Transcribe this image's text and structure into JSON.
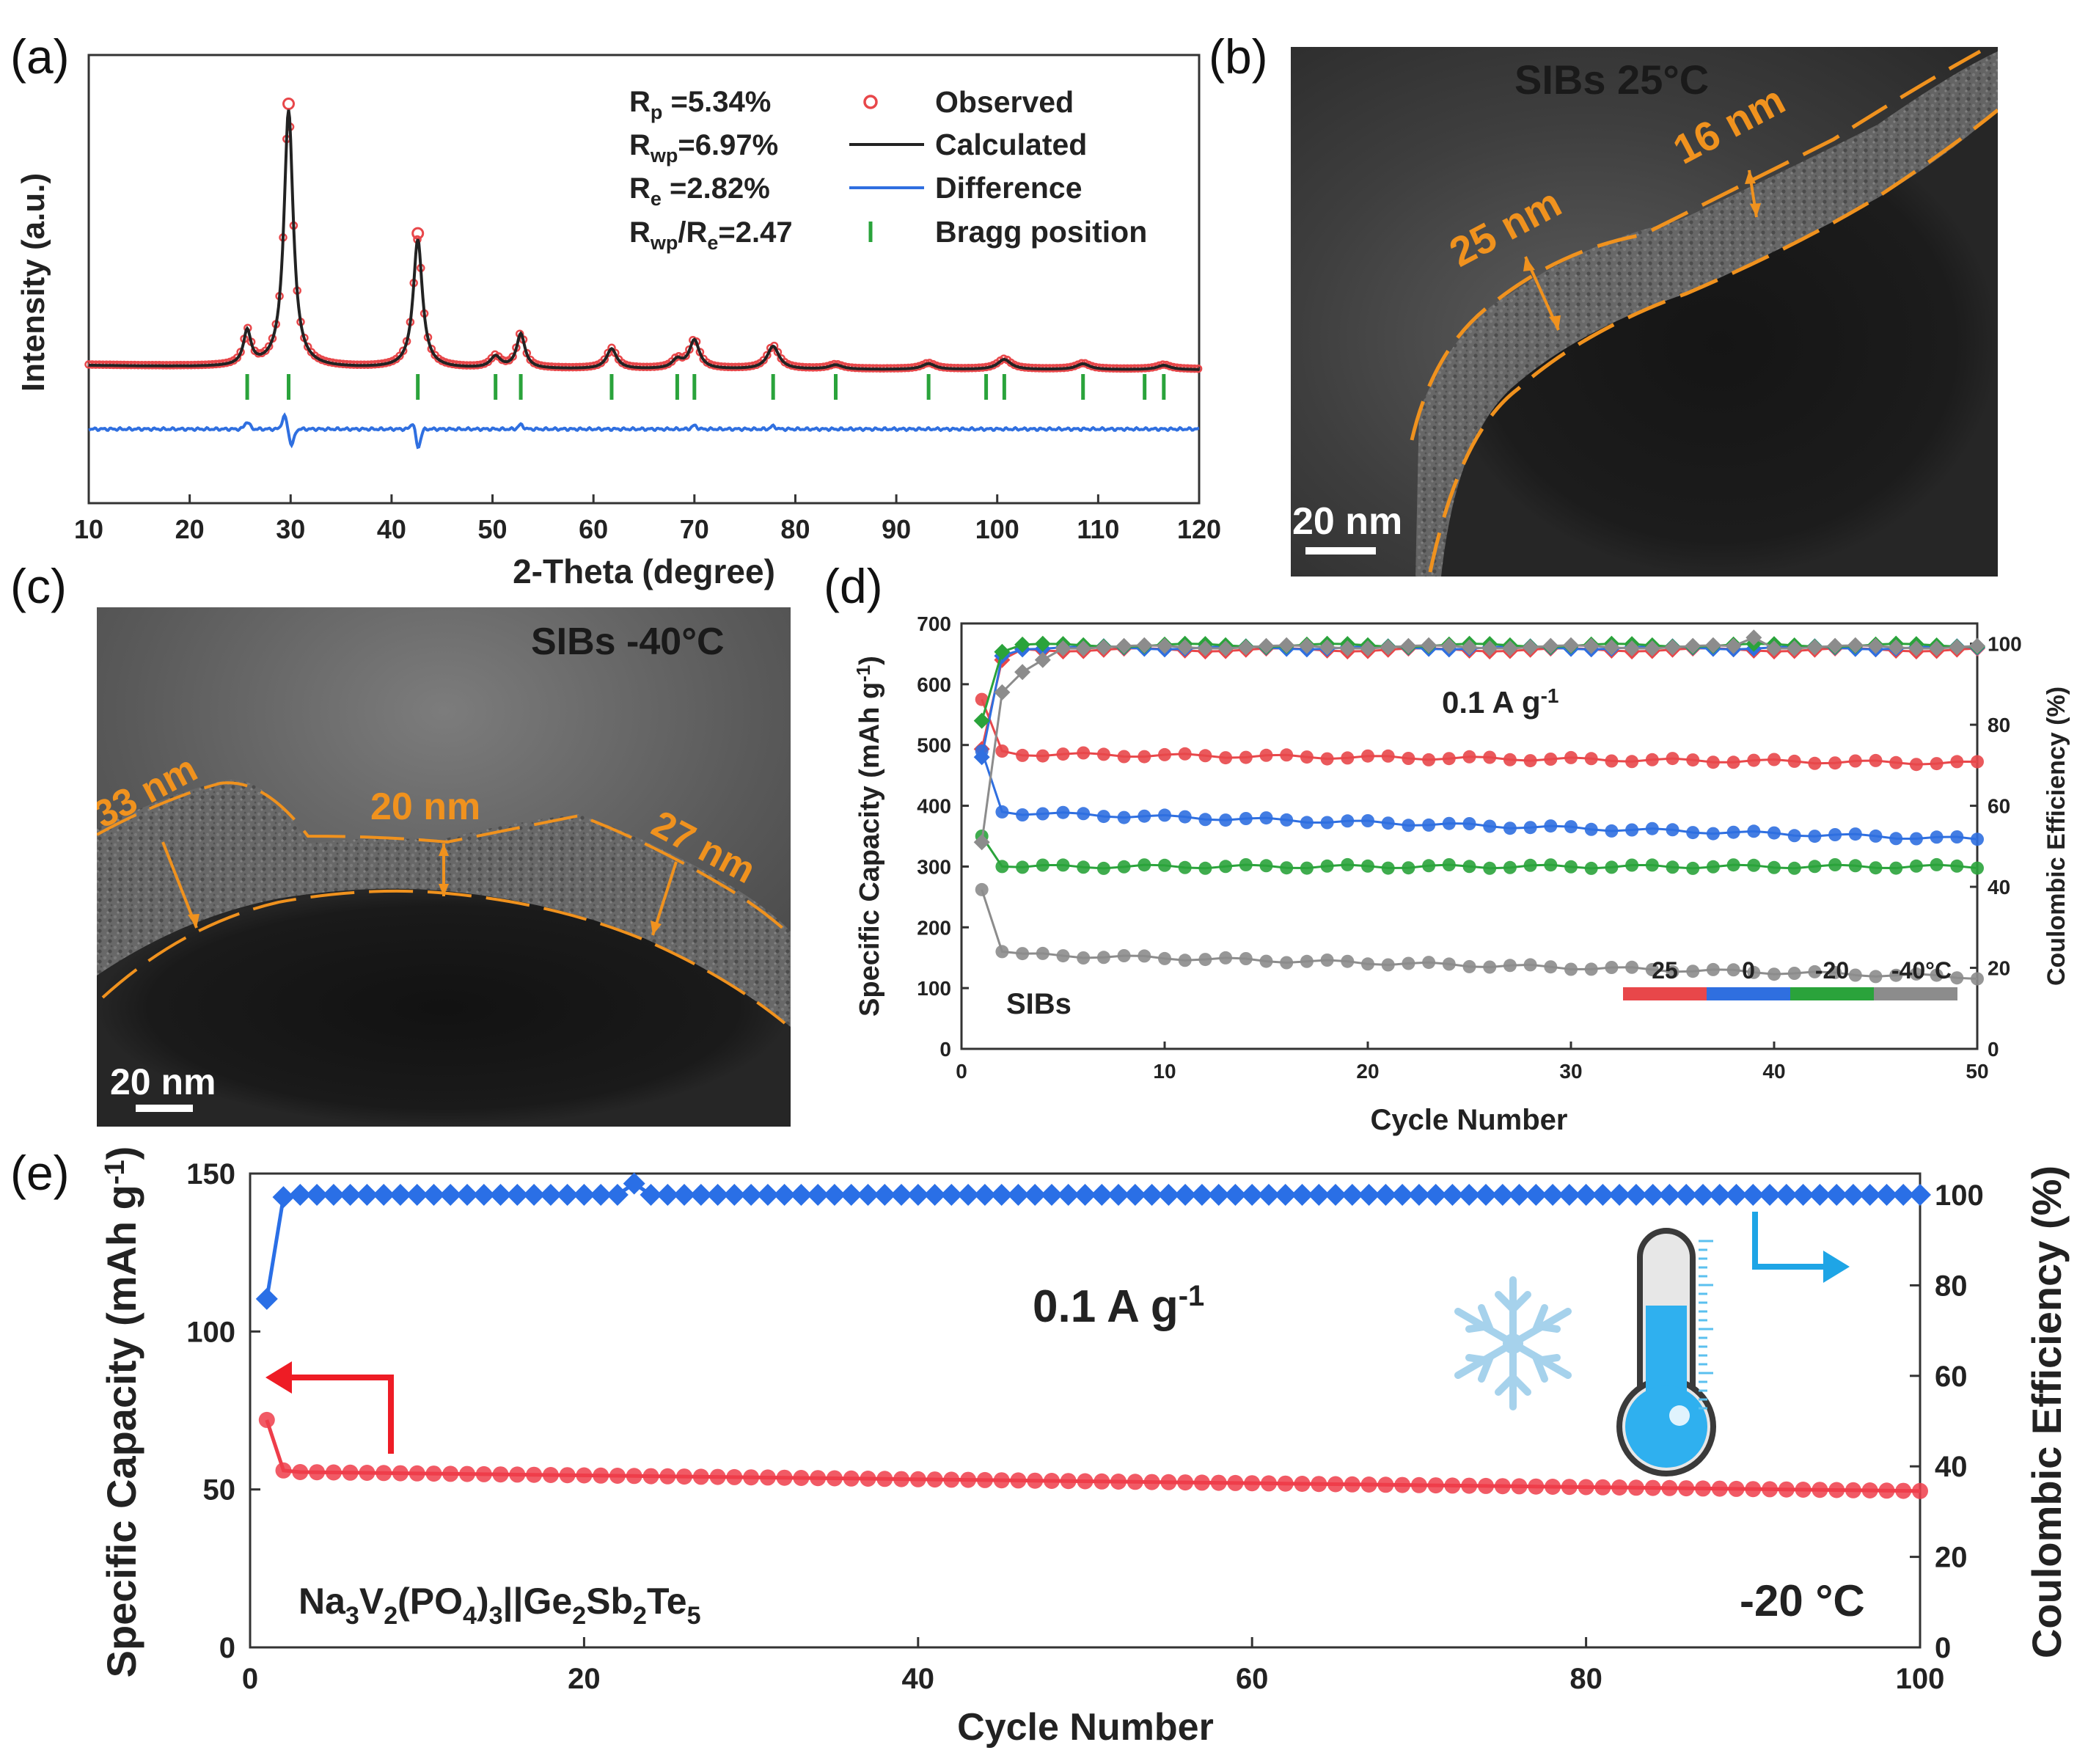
{
  "colors": {
    "observed": "#e8474a",
    "calculated": "#222222",
    "difference": "#2f6fe0",
    "bragg": "#2aa33b",
    "orange": "#f0921e",
    "t25": "#e8474a",
    "t0": "#2f6fe0",
    "tm20": "#2aa33b",
    "tm40": "#8c8c8c",
    "e_capacity": "#ee3d4a",
    "e_ce": "#2a6fe6",
    "cyan": "#1ea5e6"
  },
  "panels": {
    "a": {
      "letter": "(a)"
    },
    "b": {
      "letter": "(b)",
      "title": "SIBs   25°C",
      "measure_1": "25 nm",
      "measure_2": "16 nm",
      "scale_bar": "20 nm"
    },
    "c": {
      "letter": "(c)",
      "title": "SIBs   -40°C",
      "measure_1": "33 nm",
      "measure_2": "20 nm",
      "measure_3": "27 nm",
      "scale_bar": "20 nm"
    },
    "d": {
      "letter": "(d)"
    },
    "e": {
      "letter": "(e)"
    }
  },
  "chart_data": [
    {
      "id": "a",
      "type": "line",
      "title": "",
      "xlabel": "2-Theta (degree)",
      "ylabel": "Intensity (a.u.)",
      "xlim": [
        10,
        120
      ],
      "ylim": [
        0,
        1
      ],
      "xticks": [
        10,
        20,
        30,
        40,
        50,
        60,
        70,
        80,
        90,
        100,
        110,
        120
      ],
      "stats": [
        {
          "sym": "R",
          "sub": "p",
          "value": " =5.34%"
        },
        {
          "sym": "R",
          "sub": "wp",
          "value": "=6.97%"
        },
        {
          "sym": "R",
          "sub": "e",
          "value": " =2.82%"
        },
        {
          "sym": "R",
          "sub": "wp",
          "sym2": "/R",
          "sub2": "e",
          "value": "=2.47"
        }
      ],
      "legend": [
        "Observed",
        "Calculated",
        "Difference",
        "Bragg position"
      ],
      "baseline": 0.3,
      "peaks": [
        {
          "x": 25.7,
          "h": 0.12,
          "w": 0.45
        },
        {
          "x": 29.8,
          "h": 0.9,
          "w": 0.55
        },
        {
          "x": 42.6,
          "h": 0.45,
          "w": 0.55
        },
        {
          "x": 50.3,
          "h": 0.04,
          "w": 0.6
        },
        {
          "x": 52.8,
          "h": 0.12,
          "w": 0.5
        },
        {
          "x": 61.8,
          "h": 0.07,
          "w": 0.6
        },
        {
          "x": 68.3,
          "h": 0.03,
          "w": 0.6
        },
        {
          "x": 70.0,
          "h": 0.1,
          "w": 0.6
        },
        {
          "x": 77.8,
          "h": 0.08,
          "w": 0.7
        },
        {
          "x": 84.0,
          "h": 0.015,
          "w": 0.8
        },
        {
          "x": 93.2,
          "h": 0.02,
          "w": 0.8
        },
        {
          "x": 100.7,
          "h": 0.035,
          "w": 0.8
        },
        {
          "x": 108.5,
          "h": 0.02,
          "w": 0.8
        },
        {
          "x": 116.5,
          "h": 0.015,
          "w": 0.8
        }
      ],
      "bragg_positions": [
        25.7,
        29.8,
        42.6,
        50.3,
        52.8,
        61.8,
        68.3,
        70.0,
        77.8,
        84.0,
        93.2,
        98.9,
        100.7,
        108.5,
        114.6,
        116.5
      ],
      "difference_features": [
        {
          "x": 25.7,
          "amp": 0.025
        },
        {
          "x": 29.4,
          "amp": 0.045
        },
        {
          "x": 30.1,
          "amp": -0.055
        },
        {
          "x": 42.6,
          "amp": -0.07
        },
        {
          "x": 42.2,
          "amp": 0.03
        },
        {
          "x": 52.8,
          "amp": 0.015
        },
        {
          "x": 70.0,
          "amp": 0.012
        },
        {
          "x": 77.8,
          "amp": 0.01
        }
      ]
    },
    {
      "id": "d",
      "type": "scatter",
      "xlabel": "Cycle Number",
      "ylabel": "Specific Capacity (mAh g",
      "ylabel_sup": "-1",
      "ylabel_end": ")",
      "y2label": "Coulombic Efficiency (%)",
      "xlim": [
        0,
        50
      ],
      "ylim": [
        0,
        700
      ],
      "y2lim": [
        0,
        105
      ],
      "xticks": [
        0,
        10,
        20,
        30,
        40,
        50
      ],
      "yticks": [
        0,
        100,
        200,
        300,
        400,
        500,
        600,
        700
      ],
      "y2ticks": [
        0,
        20,
        40,
        60,
        80,
        100
      ],
      "annotation": "0.1 A g",
      "annotation_sup": "-1",
      "label": "SIBs",
      "legend": [
        {
          "label": "25",
          "color": "#e8474a"
        },
        {
          "label": "0",
          "color": "#2f6fe0"
        },
        {
          "label": "-20",
          "color": "#2aa33b"
        },
        {
          "label": "-40°C",
          "color": "#8c8c8c"
        }
      ],
      "series": [
        {
          "name": "25",
          "color": "#e8474a",
          "cap_first": 575,
          "cap_second": 490,
          "cap_start": 485,
          "cap_end": 470,
          "ce_first": 74,
          "ce_second": 96,
          "ce_plateau": 98.5
        },
        {
          "name": "0",
          "color": "#2f6fe0",
          "cap_first": 490,
          "cap_second": 390,
          "cap_start": 388,
          "cap_end": 345,
          "ce_first": 72,
          "ce_second": 97,
          "ce_plateau": 99.0
        },
        {
          "name": "-20",
          "color": "#2aa33b",
          "cap_first": 350,
          "cap_second": 300,
          "cap_start": 300,
          "cap_end": 300,
          "ce_first": 81,
          "ce_second": 98,
          "ce_plateau": 99.6
        },
        {
          "name": "-40°C",
          "color": "#8c8c8c",
          "cap_first": 262,
          "cap_second": 160,
          "cap_start": 155,
          "cap_end": 118,
          "ce_first": 51,
          "ce_second": 88,
          "ce_plateau": 99.2
        }
      ]
    },
    {
      "id": "e",
      "type": "scatter",
      "xlabel": "Cycle Number",
      "ylabel": "Specific Capacity (mAh g",
      "ylabel_sup": "-1",
      "ylabel_end": ")",
      "y2label": "Coulombic Efficiency (%)",
      "xlim": [
        0,
        100
      ],
      "ylim": [
        0,
        150
      ],
      "y2lim": [
        0,
        104.7
      ],
      "xticks": [
        0,
        20,
        40,
        60,
        80,
        100
      ],
      "yticks": [
        0,
        50,
        100,
        150
      ],
      "y2ticks": [
        0,
        20,
        40,
        60,
        80,
        100
      ],
      "annotation": "0.1 A g",
      "annotation_sup": "-1",
      "cell_label": [
        "Na",
        "3",
        "V",
        "2",
        "(PO",
        "4",
        ")",
        "3",
        "||Ge",
        "2",
        "Sb",
        "2",
        "Te",
        "5"
      ],
      "temp_label": "-20 °C",
      "series": [
        {
          "name": "Specific Capacity",
          "axis": "left",
          "color": "#ee3d4a",
          "first": 72,
          "second": 56,
          "start": 55.5,
          "end": 49.5
        },
        {
          "name": "Coulombic Efficiency",
          "axis": "right",
          "color": "#2a6fe6",
          "first": 77,
          "second": 99.5,
          "plateau": 100,
          "spike_cycle": 23,
          "spike_value": 102.5
        }
      ]
    }
  ]
}
